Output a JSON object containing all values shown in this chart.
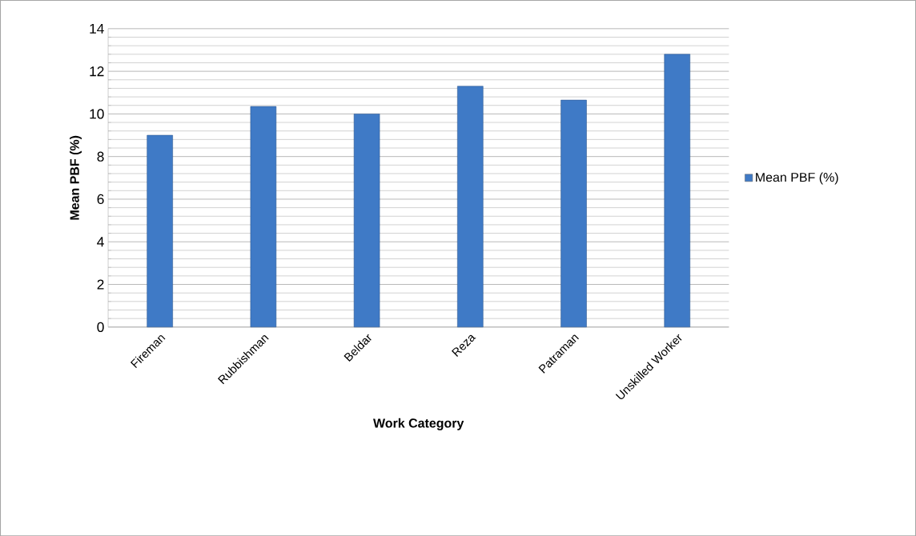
{
  "chart_data": {
    "type": "bar",
    "xlabel": "Work Category",
    "ylabel": "Mean PBF (%)",
    "categories": [
      "Fireman",
      "Rubbishman",
      "Beldar",
      "Reza",
      "Patraman",
      "Unskilled Worker"
    ],
    "series": [
      {
        "name": "Mean PBF (%)",
        "color": "#3f7ac6",
        "values": [
          9.0,
          10.35,
          10.0,
          11.3,
          10.65,
          12.8
        ]
      }
    ],
    "ylim": [
      0,
      14
    ],
    "yticks": [
      0,
      2,
      4,
      6,
      8,
      10,
      12,
      14
    ],
    "grid": "y",
    "legend": "right"
  }
}
